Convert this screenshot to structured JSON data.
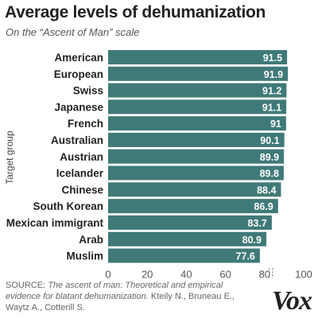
{
  "header": {
    "title": "Average levels of dehumanization",
    "subtitle": "On the “Ascent of Man” scale"
  },
  "chart_data": {
    "type": "bar",
    "orientation": "horizontal",
    "categories": [
      "American",
      "European",
      "Swiss",
      "Japanese",
      "French",
      "Australian",
      "Austrian",
      "Icelander",
      "Chinese",
      "South Korean",
      "Mexican immigrant",
      "Arab",
      "Muslim"
    ],
    "values": [
      91.5,
      91.9,
      91.2,
      91.1,
      91,
      90.1,
      89.9,
      89.8,
      88.4,
      86.9,
      83.7,
      80.9,
      77.6
    ],
    "value_labels": [
      "91.5",
      "91.9",
      "91.2",
      "91.1",
      "91",
      "90.1",
      "89.9",
      "89.8",
      "88.4",
      "86.9",
      "83.7",
      "80.9",
      "77.6"
    ],
    "ylabel": "Target group",
    "xlabel": "",
    "xlim": [
      0,
      100
    ],
    "xticks": [
      0,
      20,
      40,
      60,
      80,
      100
    ],
    "axis_break_after": 80,
    "bar_color": "#3f7a78",
    "label_color": "#ffffff",
    "grid": false
  },
  "source": {
    "prefix": "SOURCE: ",
    "title": "The ascent of man: Theoretical and empirical evidence for blatant dehumanization.",
    "authors": "Kteily N., Bruneau E., Waytz A., Cotterill S."
  },
  "brand": {
    "logo_text": "Vox"
  }
}
